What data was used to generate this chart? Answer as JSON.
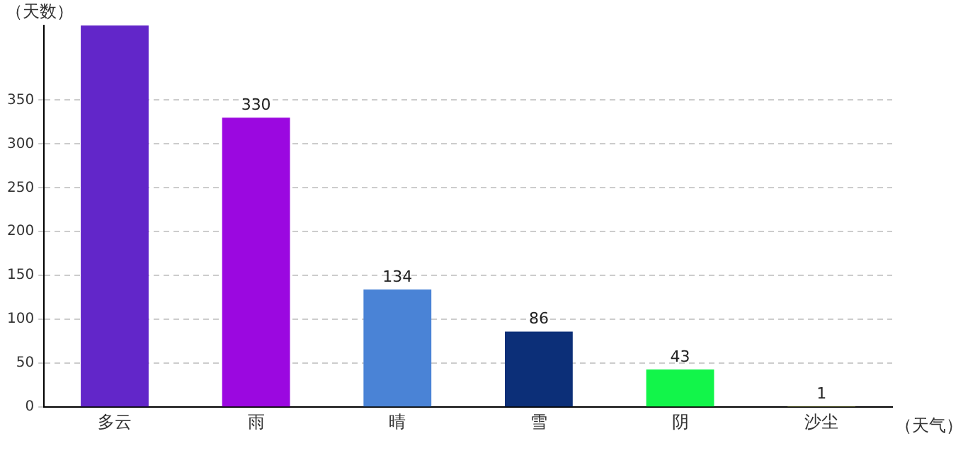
{
  "chart_data": {
    "type": "bar",
    "xlabel": "（天气）",
    "ylabel": "（天数）",
    "categories": [
      "多云",
      "雨",
      "晴",
      "雪",
      "阴",
      "沙尘"
    ],
    "values": [
      435,
      330,
      134,
      86,
      43,
      1
    ],
    "value_labels": [
      null,
      "330",
      "134",
      "86",
      "43",
      "1"
    ],
    "colors": [
      "#6226c9",
      "#9b08e0",
      "#4a83d6",
      "#0c2f78",
      "#12f54a",
      "#c8d830"
    ],
    "ylim": [
      0,
      435
    ],
    "yticks": [
      0,
      50,
      100,
      150,
      200,
      250,
      300,
      350
    ],
    "grid": "y",
    "legend": false
  }
}
